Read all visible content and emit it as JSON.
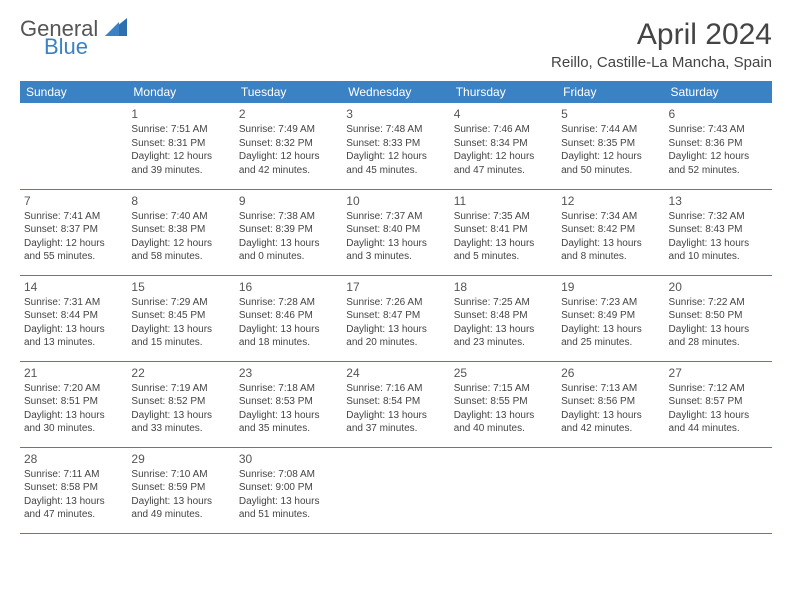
{
  "brand": {
    "part1": "General",
    "part2": "Blue"
  },
  "title": "April 2024",
  "location": "Reillo, Castille-La Mancha, Spain",
  "colors": {
    "accent": "#3b82c4",
    "text": "#444444",
    "bg": "#ffffff"
  },
  "day_headers": [
    "Sunday",
    "Monday",
    "Tuesday",
    "Wednesday",
    "Thursday",
    "Friday",
    "Saturday"
  ],
  "weeks": [
    [
      null,
      {
        "n": "1",
        "sr": "7:51 AM",
        "ss": "8:31 PM",
        "dl": "12 hours and 39 minutes."
      },
      {
        "n": "2",
        "sr": "7:49 AM",
        "ss": "8:32 PM",
        "dl": "12 hours and 42 minutes."
      },
      {
        "n": "3",
        "sr": "7:48 AM",
        "ss": "8:33 PM",
        "dl": "12 hours and 45 minutes."
      },
      {
        "n": "4",
        "sr": "7:46 AM",
        "ss": "8:34 PM",
        "dl": "12 hours and 47 minutes."
      },
      {
        "n": "5",
        "sr": "7:44 AM",
        "ss": "8:35 PM",
        "dl": "12 hours and 50 minutes."
      },
      {
        "n": "6",
        "sr": "7:43 AM",
        "ss": "8:36 PM",
        "dl": "12 hours and 52 minutes."
      }
    ],
    [
      {
        "n": "7",
        "sr": "7:41 AM",
        "ss": "8:37 PM",
        "dl": "12 hours and 55 minutes."
      },
      {
        "n": "8",
        "sr": "7:40 AM",
        "ss": "8:38 PM",
        "dl": "12 hours and 58 minutes."
      },
      {
        "n": "9",
        "sr": "7:38 AM",
        "ss": "8:39 PM",
        "dl": "13 hours and 0 minutes."
      },
      {
        "n": "10",
        "sr": "7:37 AM",
        "ss": "8:40 PM",
        "dl": "13 hours and 3 minutes."
      },
      {
        "n": "11",
        "sr": "7:35 AM",
        "ss": "8:41 PM",
        "dl": "13 hours and 5 minutes."
      },
      {
        "n": "12",
        "sr": "7:34 AM",
        "ss": "8:42 PM",
        "dl": "13 hours and 8 minutes."
      },
      {
        "n": "13",
        "sr": "7:32 AM",
        "ss": "8:43 PM",
        "dl": "13 hours and 10 minutes."
      }
    ],
    [
      {
        "n": "14",
        "sr": "7:31 AM",
        "ss": "8:44 PM",
        "dl": "13 hours and 13 minutes."
      },
      {
        "n": "15",
        "sr": "7:29 AM",
        "ss": "8:45 PM",
        "dl": "13 hours and 15 minutes."
      },
      {
        "n": "16",
        "sr": "7:28 AM",
        "ss": "8:46 PM",
        "dl": "13 hours and 18 minutes."
      },
      {
        "n": "17",
        "sr": "7:26 AM",
        "ss": "8:47 PM",
        "dl": "13 hours and 20 minutes."
      },
      {
        "n": "18",
        "sr": "7:25 AM",
        "ss": "8:48 PM",
        "dl": "13 hours and 23 minutes."
      },
      {
        "n": "19",
        "sr": "7:23 AM",
        "ss": "8:49 PM",
        "dl": "13 hours and 25 minutes."
      },
      {
        "n": "20",
        "sr": "7:22 AM",
        "ss": "8:50 PM",
        "dl": "13 hours and 28 minutes."
      }
    ],
    [
      {
        "n": "21",
        "sr": "7:20 AM",
        "ss": "8:51 PM",
        "dl": "13 hours and 30 minutes."
      },
      {
        "n": "22",
        "sr": "7:19 AM",
        "ss": "8:52 PM",
        "dl": "13 hours and 33 minutes."
      },
      {
        "n": "23",
        "sr": "7:18 AM",
        "ss": "8:53 PM",
        "dl": "13 hours and 35 minutes."
      },
      {
        "n": "24",
        "sr": "7:16 AM",
        "ss": "8:54 PM",
        "dl": "13 hours and 37 minutes."
      },
      {
        "n": "25",
        "sr": "7:15 AM",
        "ss": "8:55 PM",
        "dl": "13 hours and 40 minutes."
      },
      {
        "n": "26",
        "sr": "7:13 AM",
        "ss": "8:56 PM",
        "dl": "13 hours and 42 minutes."
      },
      {
        "n": "27",
        "sr": "7:12 AM",
        "ss": "8:57 PM",
        "dl": "13 hours and 44 minutes."
      }
    ],
    [
      {
        "n": "28",
        "sr": "7:11 AM",
        "ss": "8:58 PM",
        "dl": "13 hours and 47 minutes."
      },
      {
        "n": "29",
        "sr": "7:10 AM",
        "ss": "8:59 PM",
        "dl": "13 hours and 49 minutes."
      },
      {
        "n": "30",
        "sr": "7:08 AM",
        "ss": "9:00 PM",
        "dl": "13 hours and 51 minutes."
      },
      null,
      null,
      null,
      null
    ]
  ],
  "labels": {
    "sunrise": "Sunrise: ",
    "sunset": "Sunset: ",
    "daylight": "Daylight: "
  }
}
